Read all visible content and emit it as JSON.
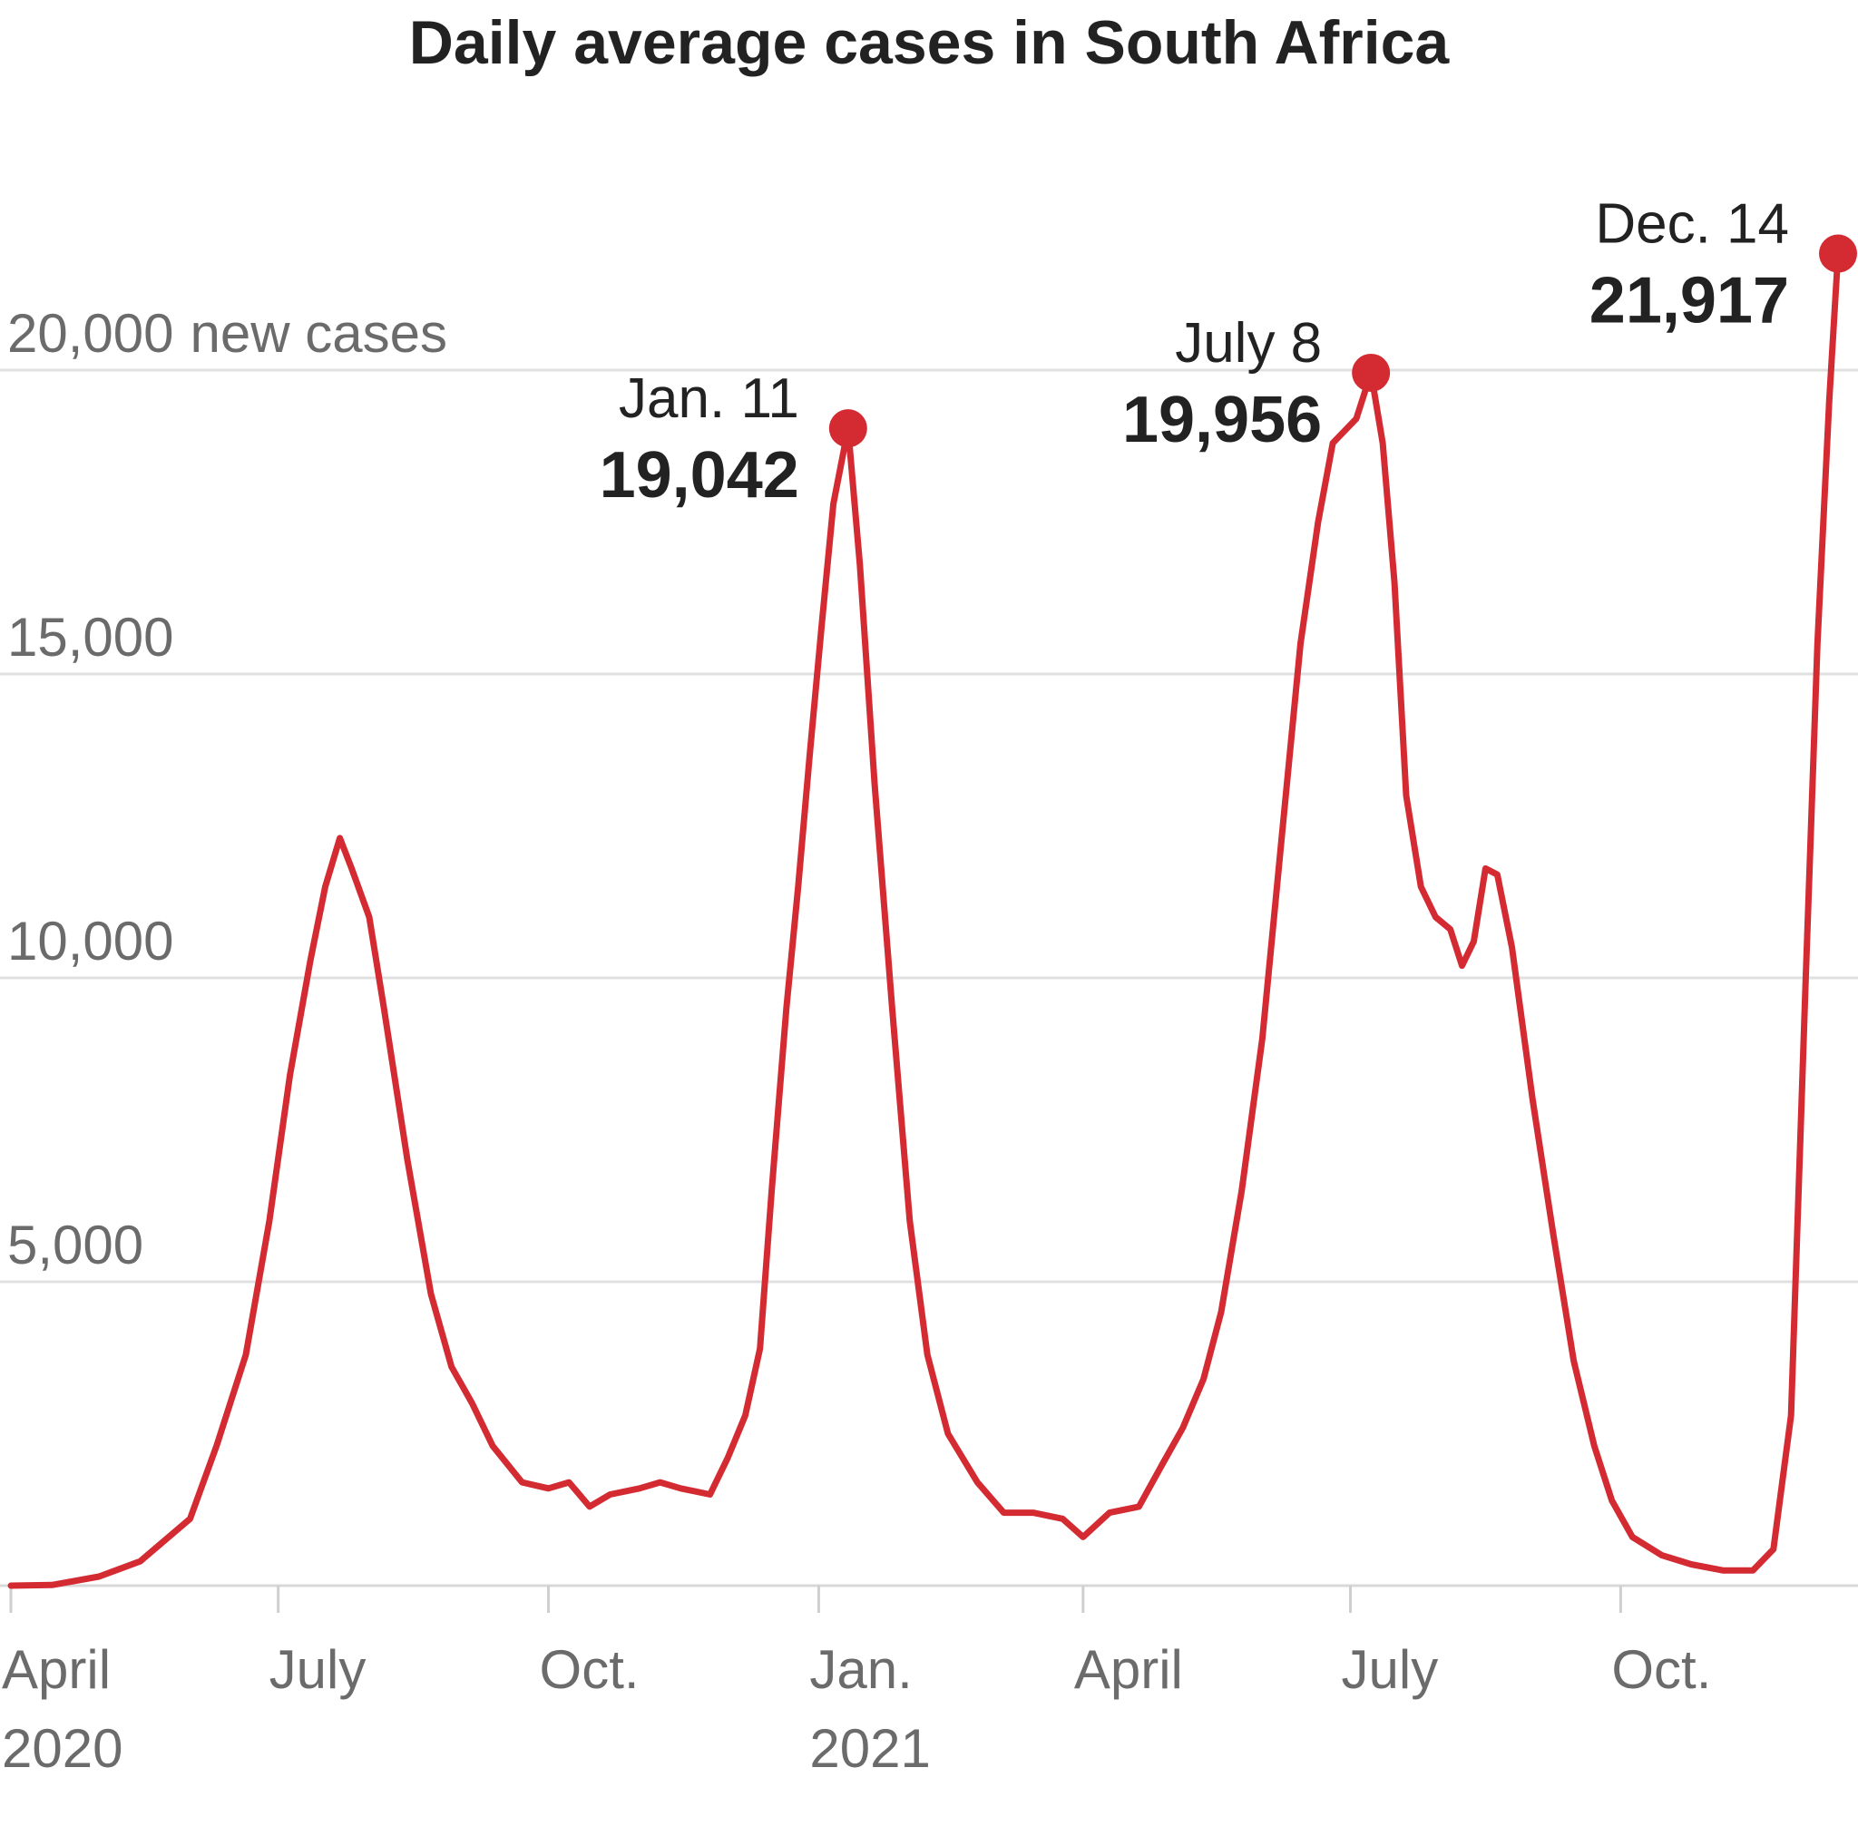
{
  "chart_data": {
    "type": "line",
    "title": "Daily average cases in South Africa",
    "ylabel": "",
    "xlabel": "",
    "ylim": [
      0,
      24000
    ],
    "y_ticks": [
      {
        "value": 5000,
        "label": "5,000"
      },
      {
        "value": 10000,
        "label": "10,000"
      },
      {
        "value": 15000,
        "label": "15,000"
      },
      {
        "value": 20000,
        "label": "20,000",
        "suffix": "new cases"
      }
    ],
    "x_ticks": [
      {
        "date": "2020-04-01",
        "label": "April",
        "sublabel": "2020"
      },
      {
        "date": "2020-07-01",
        "label": "July"
      },
      {
        "date": "2020-10-01",
        "label": "Oct."
      },
      {
        "date": "2021-01-01",
        "label": "Jan.",
        "sublabel": "2021"
      },
      {
        "date": "2021-04-01",
        "label": "April"
      },
      {
        "date": "2021-07-01",
        "label": "July"
      },
      {
        "date": "2021-10-01",
        "label": "Oct."
      }
    ],
    "xlim": [
      "2020-04-01",
      "2021-12-14"
    ],
    "grid": true,
    "line_color": "#d42a32",
    "series": [
      {
        "name": "",
        "points": [
          [
            "2020-04-01",
            0
          ],
          [
            "2020-04-15",
            10
          ],
          [
            "2020-05-01",
            150
          ],
          [
            "2020-05-15",
            400
          ],
          [
            "2020-06-01",
            1100
          ],
          [
            "2020-06-10",
            2300
          ],
          [
            "2020-06-20",
            3800
          ],
          [
            "2020-06-28",
            6000
          ],
          [
            "2020-07-05",
            8400
          ],
          [
            "2020-07-12",
            10300
          ],
          [
            "2020-07-17",
            11500
          ],
          [
            "2020-07-22",
            12300
          ],
          [
            "2020-07-26",
            11800
          ],
          [
            "2020-08-01",
            11000
          ],
          [
            "2020-08-06",
            9500
          ],
          [
            "2020-08-14",
            7000
          ],
          [
            "2020-08-22",
            4800
          ],
          [
            "2020-08-29",
            3600
          ],
          [
            "2020-09-05",
            3000
          ],
          [
            "2020-09-12",
            2300
          ],
          [
            "2020-09-22",
            1700
          ],
          [
            "2020-10-01",
            1600
          ],
          [
            "2020-10-08",
            1700
          ],
          [
            "2020-10-15",
            1300
          ],
          [
            "2020-10-22",
            1500
          ],
          [
            "2020-11-01",
            1600
          ],
          [
            "2020-11-08",
            1700
          ],
          [
            "2020-11-15",
            1600
          ],
          [
            "2020-11-25",
            1500
          ],
          [
            "2020-12-01",
            2100
          ],
          [
            "2020-12-07",
            2800
          ],
          [
            "2020-12-12",
            3900
          ],
          [
            "2020-12-16",
            6500
          ],
          [
            "2020-12-21",
            9500
          ],
          [
            "2020-12-25",
            11500
          ],
          [
            "2020-12-29",
            13700
          ],
          [
            "2021-01-02",
            15800
          ],
          [
            "2021-01-06",
            17800
          ],
          [
            "2021-01-11",
            19042
          ],
          [
            "2021-01-15",
            16800
          ],
          [
            "2021-01-20",
            13200
          ],
          [
            "2021-01-26",
            9500
          ],
          [
            "2021-02-01",
            6000
          ],
          [
            "2021-02-07",
            3800
          ],
          [
            "2021-02-14",
            2500
          ],
          [
            "2021-02-24",
            1700
          ],
          [
            "2021-03-05",
            1200
          ],
          [
            "2021-03-15",
            1200
          ],
          [
            "2021-03-25",
            1100
          ],
          [
            "2021-04-01",
            800
          ],
          [
            "2021-04-10",
            1200
          ],
          [
            "2021-04-20",
            1300
          ],
          [
            "2021-04-28",
            2000
          ],
          [
            "2021-05-05",
            2600
          ],
          [
            "2021-05-12",
            3400
          ],
          [
            "2021-05-18",
            4500
          ],
          [
            "2021-05-25",
            6500
          ],
          [
            "2021-06-01",
            9000
          ],
          [
            "2021-06-08",
            12500
          ],
          [
            "2021-06-14",
            15500
          ],
          [
            "2021-06-20",
            17500
          ],
          [
            "2021-06-25",
            18800
          ],
          [
            "2021-07-03",
            19200
          ],
          [
            "2021-07-08",
            19956
          ],
          [
            "2021-07-12",
            18800
          ],
          [
            "2021-07-16",
            16500
          ],
          [
            "2021-07-20",
            13000
          ],
          [
            "2021-07-25",
            11500
          ],
          [
            "2021-07-30",
            11000
          ],
          [
            "2021-08-04",
            10800
          ],
          [
            "2021-08-08",
            10200
          ],
          [
            "2021-08-12",
            10600
          ],
          [
            "2021-08-16",
            11800
          ],
          [
            "2021-08-20",
            11700
          ],
          [
            "2021-08-25",
            10500
          ],
          [
            "2021-09-01",
            8000
          ],
          [
            "2021-09-08",
            5800
          ],
          [
            "2021-09-15",
            3700
          ],
          [
            "2021-09-22",
            2300
          ],
          [
            "2021-09-28",
            1400
          ],
          [
            "2021-10-05",
            800
          ],
          [
            "2021-10-15",
            500
          ],
          [
            "2021-10-25",
            350
          ],
          [
            "2021-11-05",
            250
          ],
          [
            "2021-11-15",
            250
          ],
          [
            "2021-11-22",
            600
          ],
          [
            "2021-11-28",
            2800
          ],
          [
            "2021-12-03",
            10000
          ],
          [
            "2021-12-07",
            15500
          ],
          [
            "2021-12-11",
            19500
          ],
          [
            "2021-12-14",
            21917
          ]
        ]
      }
    ],
    "annotations": [
      {
        "date": "2021-01-11",
        "value": 19042,
        "date_label": "Jan. 11",
        "value_label": "19,042"
      },
      {
        "date": "2021-07-08",
        "value": 19956,
        "date_label": "July 8",
        "value_label": "19,956"
      },
      {
        "date": "2021-12-14",
        "value": 21917,
        "date_label": "Dec. 14",
        "value_label": "21,917"
      }
    ]
  }
}
